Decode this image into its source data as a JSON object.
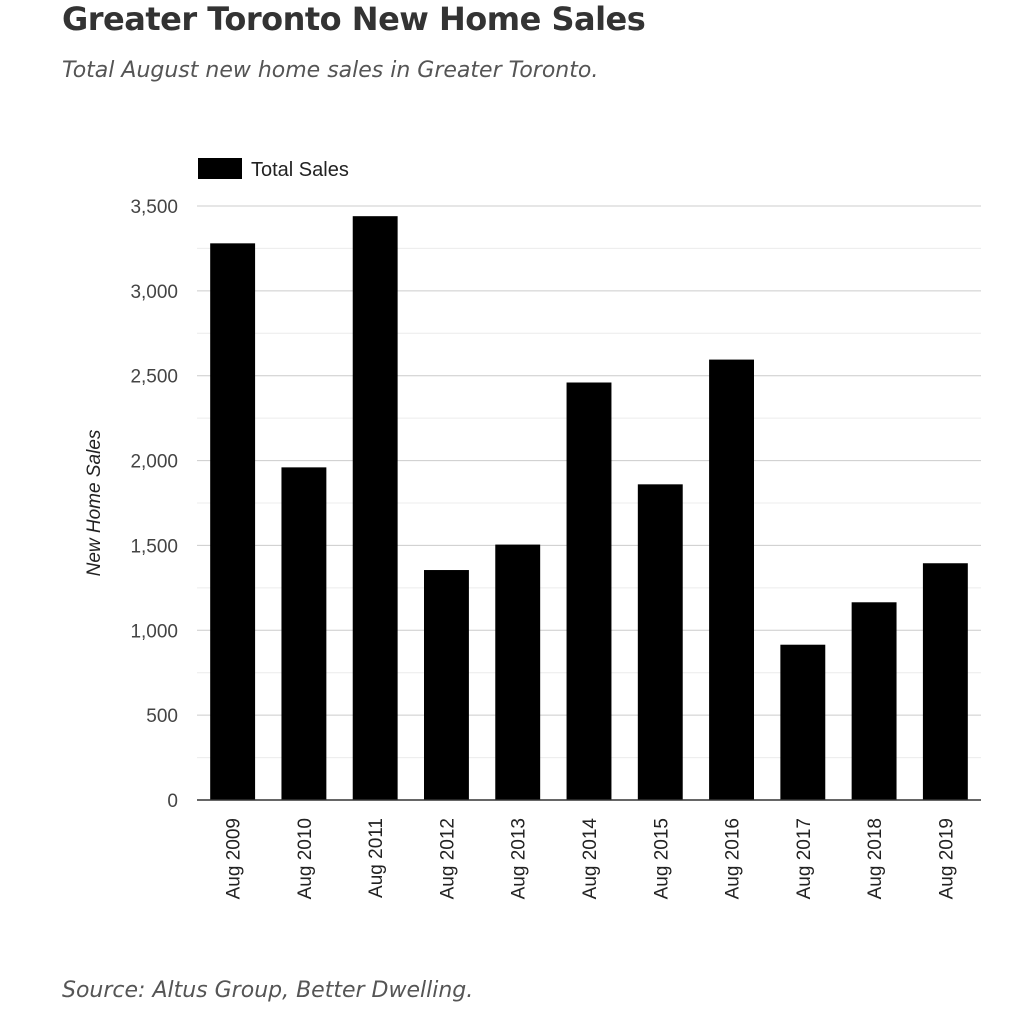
{
  "title": "Greater Toronto New Home Sales",
  "subtitle": "Total August new home sales in Greater Toronto.",
  "source": "Source: Altus Group, Better Dwelling.",
  "chart_data": {
    "type": "bar",
    "categories": [
      "Aug 2009",
      "Aug 2010",
      "Aug 2011",
      "Aug 2012",
      "Aug 2013",
      "Aug 2014",
      "Aug 2015",
      "Aug 2016",
      "Aug 2017",
      "Aug 2018",
      "Aug 2019"
    ],
    "series": [
      {
        "name": "Total Sales",
        "values": [
          3280,
          1960,
          3440,
          1355,
          1505,
          2460,
          1860,
          2595,
          915,
          1165,
          1395
        ],
        "color": "#000000"
      }
    ],
    "ylabel": "New Home Sales",
    "xlabel": "",
    "ylim": [
      0,
      3500
    ],
    "yticks": [
      0,
      500,
      1000,
      1500,
      2000,
      2500,
      3000,
      3500
    ],
    "ytick_labels": [
      "0",
      "500",
      "1,000",
      "1,500",
      "2,000",
      "2,500",
      "3,000",
      "3,500"
    ],
    "grid": true,
    "legend_position": "top-left"
  }
}
